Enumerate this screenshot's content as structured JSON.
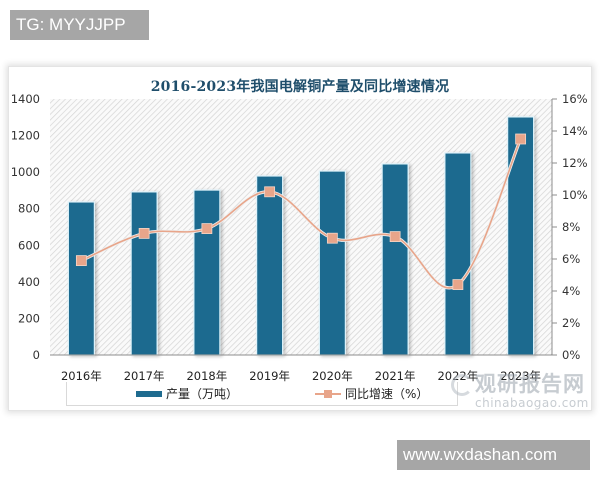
{
  "watermarks": {
    "top_tag": "TG: MYYJJPP",
    "bottom_tag": "www.wxdashan.com",
    "source_cn": "观研报告网",
    "source_en": "chinabaogao.com"
  },
  "colors": {
    "bar": "#1e6b8f",
    "line": "#e8a58a",
    "title": "#1f4e6b"
  },
  "chart_data": {
    "type": "bar",
    "title": "2016-2023年我国电解铜产量及同比增速情况",
    "xlabel": "",
    "ylabel": "",
    "categories": [
      "2016年",
      "2017年",
      "2018年",
      "2019年",
      "2020年",
      "2021年",
      "2022年",
      "2023年"
    ],
    "series": [
      {
        "name": "产量（万吨）",
        "type": "bar",
        "axis": "left",
        "values": [
          837,
          892,
          902,
          979,
          1006,
          1045,
          1105,
          1302
        ]
      },
      {
        "name": "同比增速（%）",
        "type": "line",
        "axis": "right",
        "values": [
          5.9,
          7.6,
          7.9,
          10.2,
          7.3,
          7.4,
          4.4,
          13.5
        ]
      }
    ],
    "ylim": [
      0,
      1400
    ],
    "y_ticks": [
      "0",
      "200",
      "400",
      "600",
      "800",
      "1000",
      "1200",
      "1400"
    ],
    "y2lim": [
      0,
      16
    ],
    "y2_ticks": [
      "0%",
      "2%",
      "4%",
      "6%",
      "8%",
      "10%",
      "12%",
      "14%",
      "16%"
    ],
    "grid": false,
    "legend_position": "bottom"
  }
}
